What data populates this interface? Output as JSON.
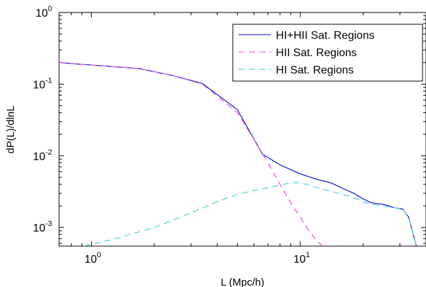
{
  "chart_data": {
    "type": "line",
    "xscale": "log",
    "yscale": "log",
    "xlim": [
      0.7,
      40
    ],
    "ylim": [
      0.00055,
      1
    ],
    "xlabel": "L (Mpc/h)",
    "ylabel": "dP(L)/dlnL",
    "x_ticks": [
      {
        "value": 1,
        "base": "10",
        "exp": "0"
      },
      {
        "value": 10,
        "base": "10",
        "exp": "1"
      }
    ],
    "y_ticks": [
      {
        "value": 1,
        "base": "10",
        "exp": "0"
      },
      {
        "value": 0.1,
        "base": "10",
        "exp": "-1"
      },
      {
        "value": 0.01,
        "base": "10",
        "exp": "-2"
      },
      {
        "value": 0.001,
        "base": "10",
        "exp": "-3"
      }
    ],
    "grid": false,
    "legend_position": "top-right",
    "series": [
      {
        "name": "HI+HII Sat. Regions",
        "color": "#0000cc",
        "style": "solid",
        "x": [
          0.7,
          1.0,
          1.7,
          2.5,
          3.4,
          5.0,
          6.6,
          8.0,
          10.0,
          12.0,
          14.0,
          16.0,
          18.0,
          20.0,
          22.0,
          25.0,
          28.0,
          31.0,
          33.0,
          36.0
        ],
        "y": [
          0.2,
          0.185,
          0.165,
          0.13,
          0.102,
          0.044,
          0.0105,
          0.0075,
          0.0056,
          0.0047,
          0.0042,
          0.0035,
          0.003,
          0.0025,
          0.0022,
          0.0021,
          0.0019,
          0.0018,
          0.0014,
          0.00055
        ]
      },
      {
        "name": "HII Sat. Regions",
        "color": "#e040e0",
        "style": "dashed",
        "x": [
          0.7,
          1.0,
          1.7,
          2.5,
          3.4,
          5.0,
          6.0,
          7.0,
          8.0,
          9.0,
          10.0,
          11.0,
          12.0,
          12.8
        ],
        "y": [
          0.2,
          0.185,
          0.165,
          0.13,
          0.1,
          0.04,
          0.017,
          0.008,
          0.004,
          0.0022,
          0.0014,
          0.0009,
          0.00065,
          0.00055
        ]
      },
      {
        "name": "HI Sat. Regions",
        "color": "#30d0d0",
        "style": "dashed",
        "x": [
          0.92,
          1.3,
          2.0,
          3.0,
          4.0,
          5.0,
          6.0,
          7.0,
          8.0,
          9.0,
          10.0,
          11.0,
          12.0,
          14.0,
          16.0,
          18.0,
          20.0,
          22.0,
          25.0,
          28.0,
          31.0,
          33.0,
          36.0
        ],
        "y": [
          0.00055,
          0.0007,
          0.001,
          0.0016,
          0.0023,
          0.0029,
          0.0033,
          0.0036,
          0.0039,
          0.0042,
          0.0042,
          0.0039,
          0.0036,
          0.0032,
          0.0029,
          0.0026,
          0.0023,
          0.0021,
          0.002,
          0.0019,
          0.0018,
          0.0014,
          0.00055
        ]
      }
    ]
  }
}
